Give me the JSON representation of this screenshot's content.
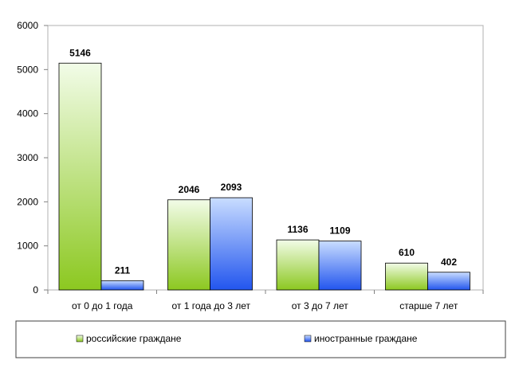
{
  "chart_data": {
    "type": "bar",
    "categories": [
      "от 0 до 1 года",
      "от 1 года до 3 лет",
      "от 3 до 7 лет",
      "старше 7 лет"
    ],
    "series": [
      {
        "name": "российские граждане",
        "values": [
          5146,
          2046,
          1136,
          610
        ],
        "color": "#9acd32"
      },
      {
        "name": "иностранные граждане",
        "values": [
          211,
          2093,
          1109,
          402
        ],
        "color": "#3366ff"
      }
    ],
    "ylim": [
      0,
      6000
    ],
    "yticks": [
      0,
      1000,
      2000,
      3000,
      4000,
      5000,
      6000
    ],
    "grid": false,
    "legend": "bottom",
    "title": "",
    "xlabel": "",
    "ylabel": ""
  }
}
